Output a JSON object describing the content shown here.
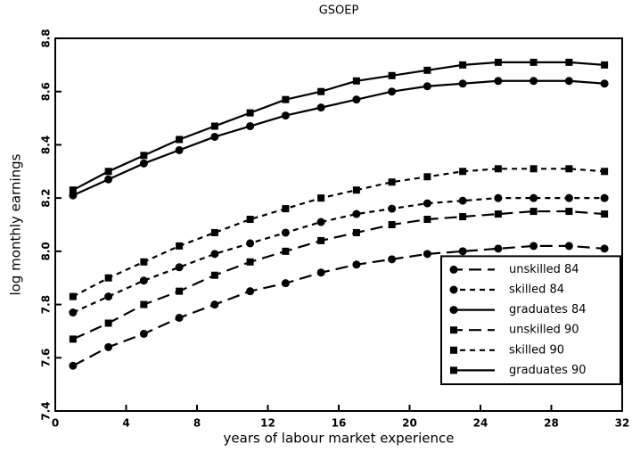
{
  "chart_data": {
    "type": "line",
    "title": "GSOEP",
    "x_label": "years of labour market experience",
    "y_label": "log monthly earnings",
    "x": [
      1,
      3,
      5,
      7,
      9,
      11,
      13,
      15,
      17,
      19,
      21,
      23,
      25,
      27,
      29,
      31
    ],
    "xlim": [
      0,
      32
    ],
    "xticks": [
      0,
      4,
      8,
      12,
      16,
      20,
      24,
      28,
      32
    ],
    "ylim": [
      7.4,
      8.8
    ],
    "yticks": [
      7.4,
      7.6,
      7.8,
      {
        "value": 8.0,
        "label": "8.0"
      },
      8.2,
      8.4,
      8.6,
      8.8
    ],
    "legend_position": "lower right",
    "series": [
      {
        "name": "unskilled 84",
        "color": "#000000",
        "line_style": "long-dash",
        "marker": "circle",
        "values": [
          7.57,
          7.64,
          7.69,
          7.75,
          7.8,
          7.85,
          7.88,
          7.92,
          7.95,
          7.97,
          7.99,
          8.0,
          8.01,
          8.02,
          8.02,
          8.01
        ]
      },
      {
        "name": "skilled 84",
        "color": "#000000",
        "line_style": "short-dash",
        "marker": "circle",
        "values": [
          7.77,
          7.83,
          7.89,
          7.94,
          7.99,
          8.03,
          8.07,
          8.11,
          8.14,
          8.16,
          8.18,
          8.19,
          8.2,
          8.2,
          8.2,
          8.2
        ]
      },
      {
        "name": "graduates 84",
        "color": "#000000",
        "line_style": "solid",
        "marker": "circle",
        "values": [
          8.21,
          8.27,
          8.33,
          8.38,
          8.43,
          8.47,
          8.51,
          8.54,
          8.57,
          8.6,
          8.62,
          8.63,
          8.64,
          8.64,
          8.64,
          8.63
        ]
      },
      {
        "name": "unskilled 90",
        "color": "#000000",
        "line_style": "long-dash",
        "marker": "square",
        "values": [
          7.67,
          7.73,
          7.8,
          7.85,
          7.91,
          7.96,
          8.0,
          8.04,
          8.07,
          8.1,
          8.12,
          8.13,
          8.14,
          8.15,
          8.15,
          8.14
        ]
      },
      {
        "name": "skilled 90",
        "color": "#000000",
        "line_style": "short-dash",
        "marker": "square",
        "values": [
          7.83,
          7.9,
          7.96,
          8.02,
          8.07,
          8.12,
          8.16,
          8.2,
          8.23,
          8.26,
          8.28,
          8.3,
          8.31,
          8.31,
          8.31,
          8.3
        ]
      },
      {
        "name": "graduates 90",
        "color": "#000000",
        "line_style": "solid",
        "marker": "square",
        "values": [
          8.23,
          8.3,
          8.36,
          8.42,
          8.47,
          8.52,
          8.57,
          8.6,
          8.64,
          8.66,
          8.68,
          8.7,
          8.71,
          8.71,
          8.71,
          8.7
        ]
      }
    ]
  }
}
